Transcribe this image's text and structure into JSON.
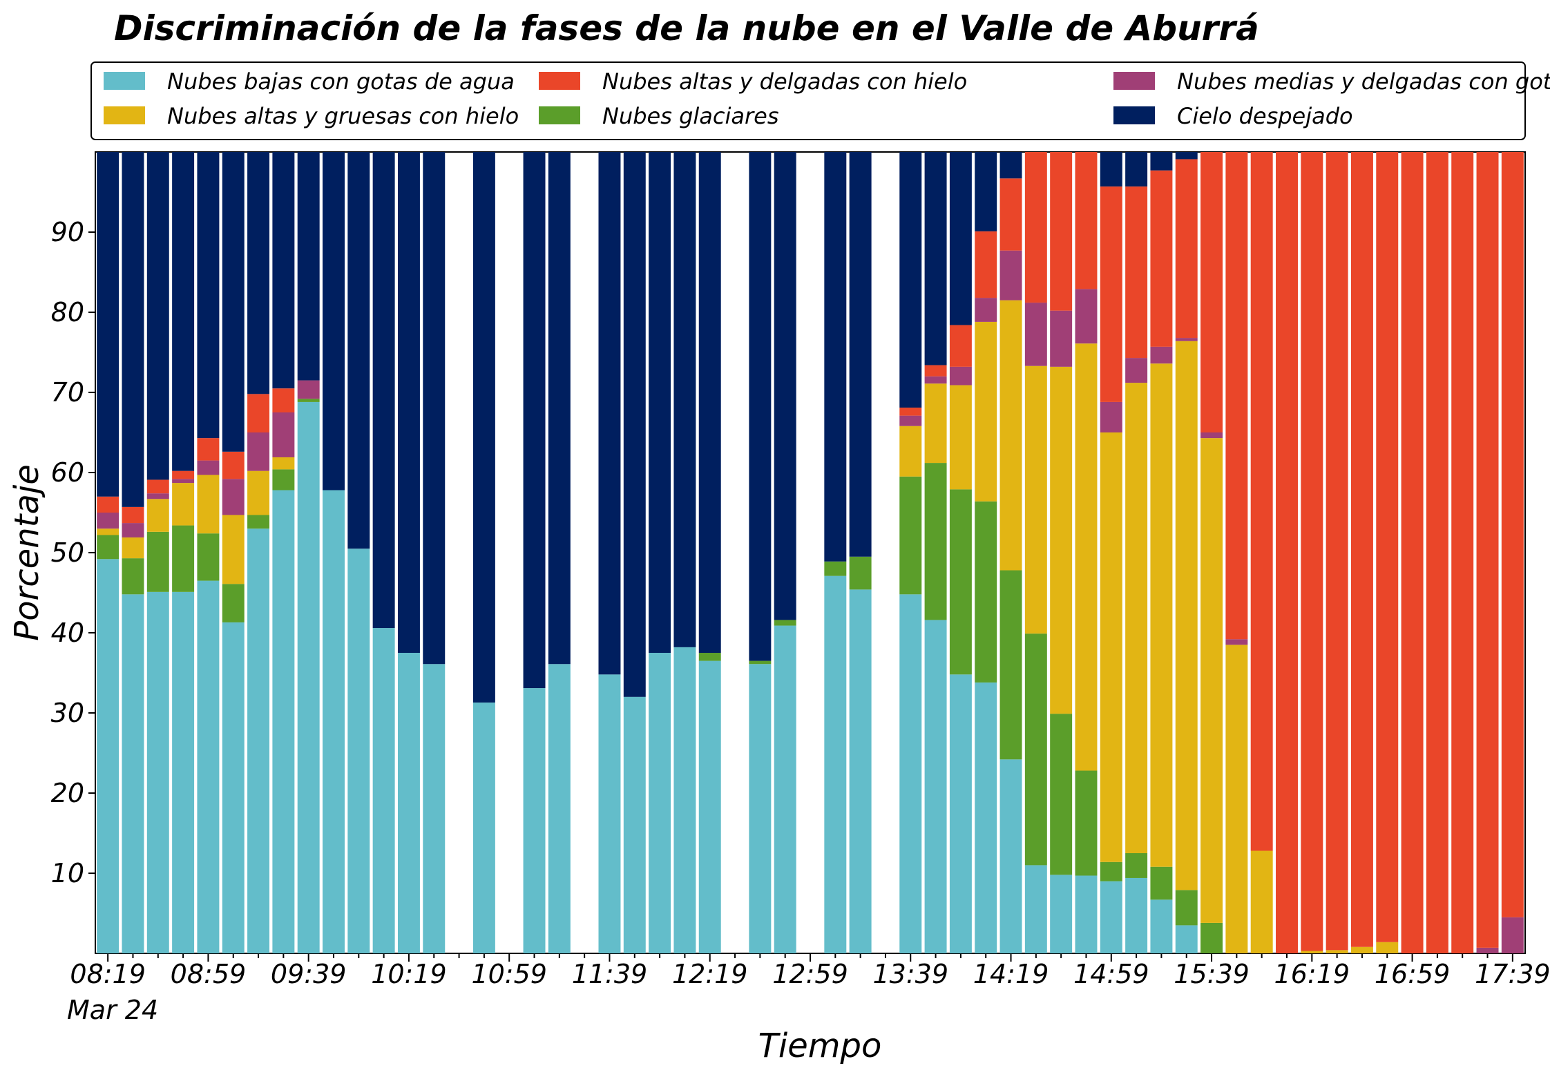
{
  "chart_data": {
    "type": "bar",
    "stacked": true,
    "title": "Discriminación de la fases de la nube en el Valle de Aburrá",
    "xlabel": "Tiempo",
    "ylabel": "Porcentaje",
    "ylim": [
      0,
      100
    ],
    "y_ticks": [
      "10",
      "20",
      "30",
      "40",
      "50",
      "60",
      "70",
      "80",
      "90"
    ],
    "x_ticks": [
      "08:19",
      "08:59",
      "09:39",
      "10:19",
      "10:59",
      "11:39",
      "12:19",
      "12:59",
      "13:39",
      "14:19",
      "14:59",
      "15:39",
      "16:19",
      "16:59",
      "17:39"
    ],
    "x_date_label": "Mar 24",
    "x_start": "08:19",
    "x_interval_minutes": 10,
    "legend_position": "top",
    "series": [
      {
        "name": "Nubes bajas con gotas de agua",
        "color": "#63bdca"
      },
      {
        "name": "Nubes glaciares",
        "color": "#5b9e2a"
      },
      {
        "name": "Nubes altas y gruesas con hielo",
        "color": "#e2b514"
      },
      {
        "name": "Nubes medias y delgadas con gotas de agua",
        "color": "#a03f76"
      },
      {
        "name": "Nubes altas y delgadas con hielo",
        "color": "#ea4629"
      },
      {
        "name": "Cielo despejado",
        "color": "#001f5f"
      }
    ],
    "legend_order": [
      0,
      2,
      4,
      1,
      3,
      5
    ],
    "bars": [
      {
        "time": "08:19",
        "values": [
          49.2,
          3,
          0.8,
          2,
          2,
          43
        ]
      },
      {
        "time": "08:29",
        "values": [
          44.8,
          4.5,
          2.6,
          1.8,
          2,
          44.3
        ]
      },
      {
        "time": "08:39",
        "values": [
          45.1,
          7.5,
          4.1,
          0.7,
          1.7,
          40.9
        ]
      },
      {
        "time": "08:49",
        "values": [
          45.1,
          8.3,
          5.3,
          0.5,
          1,
          39.8
        ]
      },
      {
        "time": "08:59",
        "values": [
          46.5,
          5.9,
          7.3,
          1.8,
          2.8,
          35.7
        ]
      },
      {
        "time": "09:09",
        "values": [
          41.3,
          4.8,
          8.6,
          4.5,
          3.4,
          37.4
        ]
      },
      {
        "time": "09:19",
        "values": [
          53,
          1.7,
          5.5,
          4.8,
          4.8,
          30.2
        ]
      },
      {
        "time": "09:29",
        "values": [
          57.8,
          2.6,
          1.5,
          5.6,
          3,
          29.5
        ]
      },
      {
        "time": "09:39",
        "values": [
          68.8,
          0.4,
          0,
          2.3,
          0,
          28.5
        ]
      },
      {
        "time": "09:49",
        "values": [
          57.8,
          0,
          0,
          0,
          0,
          42.2
        ]
      },
      {
        "time": "09:59",
        "values": [
          50.5,
          0,
          0,
          0,
          0,
          49.5
        ]
      },
      {
        "time": "10:09",
        "values": [
          40.6,
          0,
          0,
          0,
          0,
          59.4
        ]
      },
      {
        "time": "10:19",
        "values": [
          37.5,
          0,
          0,
          0,
          0,
          62.5
        ]
      },
      {
        "time": "10:29",
        "values": [
          36.1,
          0,
          0,
          0,
          0,
          63.9
        ]
      },
      {
        "time": "10:39",
        "values": null
      },
      {
        "time": "10:49",
        "values": [
          31.3,
          0,
          0,
          0,
          0,
          68.7
        ]
      },
      {
        "time": "10:59",
        "values": null
      },
      {
        "time": "11:09",
        "values": [
          33.1,
          0,
          0,
          0,
          0,
          66.9
        ]
      },
      {
        "time": "11:19",
        "values": [
          36.1,
          0,
          0,
          0,
          0,
          63.9
        ]
      },
      {
        "time": "11:29",
        "values": null
      },
      {
        "time": "11:39",
        "values": [
          34.8,
          0,
          0,
          0,
          0,
          65.2
        ]
      },
      {
        "time": "11:49",
        "values": [
          32,
          0,
          0,
          0,
          0,
          68
        ]
      },
      {
        "time": "11:59",
        "values": [
          37.5,
          0,
          0,
          0,
          0,
          62.5
        ]
      },
      {
        "time": "12:09",
        "values": [
          38.2,
          0,
          0,
          0,
          0,
          61.8
        ]
      },
      {
        "time": "12:19",
        "values": [
          36.5,
          1,
          0,
          0,
          0,
          62.5
        ]
      },
      {
        "time": "12:29",
        "values": null
      },
      {
        "time": "12:39",
        "values": [
          36.1,
          0.4,
          0,
          0,
          0,
          63.5
        ]
      },
      {
        "time": "12:49",
        "values": [
          40.9,
          0.7,
          0,
          0,
          0,
          58.4
        ]
      },
      {
        "time": "12:59",
        "values": null
      },
      {
        "time": "13:09",
        "values": [
          47.1,
          1.8,
          0,
          0,
          0,
          51.1
        ]
      },
      {
        "time": "13:19",
        "values": [
          45.4,
          4.1,
          0,
          0,
          0,
          50.5
        ]
      },
      {
        "time": "13:29",
        "values": null
      },
      {
        "time": "13:39",
        "values": [
          44.8,
          14.7,
          6.3,
          1.3,
          1,
          31.9
        ]
      },
      {
        "time": "13:49",
        "values": [
          41.6,
          19.6,
          9.9,
          0.9,
          1.4,
          26.6
        ]
      },
      {
        "time": "13:59",
        "values": [
          34.8,
          23.1,
          13,
          2.3,
          5.2,
          21.6
        ]
      },
      {
        "time": "14:09",
        "values": [
          33.8,
          22.6,
          22.4,
          3,
          8.3,
          9.9
        ]
      },
      {
        "time": "14:19",
        "values": [
          24.2,
          23.6,
          33.7,
          6.2,
          9,
          3.3
        ]
      },
      {
        "time": "14:29",
        "values": [
          11,
          28.9,
          33.4,
          7.9,
          18.8,
          0
        ]
      },
      {
        "time": "14:39",
        "values": [
          9.8,
          20.1,
          43.3,
          7,
          19.8,
          0
        ]
      },
      {
        "time": "14:49",
        "values": [
          9.7,
          13.1,
          53.3,
          6.8,
          17.1,
          0
        ]
      },
      {
        "time": "14:59",
        "values": [
          9,
          2.4,
          53.6,
          3.8,
          26.9,
          4.3
        ]
      },
      {
        "time": "15:09",
        "values": [
          9.4,
          3.1,
          58.7,
          3.1,
          21.4,
          4.3
        ]
      },
      {
        "time": "15:19",
        "values": [
          6.7,
          4.1,
          62.8,
          2.1,
          22,
          2.3
        ]
      },
      {
        "time": "15:29",
        "values": [
          3.5,
          4.4,
          68.5,
          0.4,
          22.3,
          0.9
        ]
      },
      {
        "time": "15:39",
        "values": [
          0,
          3.8,
          60.5,
          0.7,
          35,
          0
        ]
      },
      {
        "time": "15:49",
        "values": [
          0,
          0,
          38.5,
          0.7,
          60.8,
          0
        ]
      },
      {
        "time": "15:59",
        "values": [
          0,
          0,
          12.8,
          0,
          87.2,
          0
        ]
      },
      {
        "time": "16:09",
        "values": [
          0,
          0,
          0,
          0,
          100,
          0
        ]
      },
      {
        "time": "16:19",
        "values": [
          0,
          0,
          0.3,
          0,
          99.7,
          0
        ]
      },
      {
        "time": "16:29",
        "values": [
          0,
          0,
          0.4,
          0,
          99.6,
          0
        ]
      },
      {
        "time": "16:39",
        "values": [
          0,
          0,
          0.8,
          0,
          99.2,
          0
        ]
      },
      {
        "time": "16:49",
        "values": [
          0,
          0,
          1.4,
          0,
          98.6,
          0
        ]
      },
      {
        "time": "16:59",
        "values": [
          0,
          0,
          0,
          0,
          100,
          0
        ]
      },
      {
        "time": "17:09",
        "values": [
          0,
          0,
          0,
          0,
          100,
          0
        ]
      },
      {
        "time": "17:19",
        "values": [
          0,
          0,
          0,
          0,
          100,
          0
        ]
      },
      {
        "time": "17:29",
        "values": [
          0,
          0,
          0,
          0.7,
          99.3,
          0
        ]
      },
      {
        "time": "17:39",
        "values": [
          0,
          0,
          0,
          4.5,
          95.5,
          0
        ]
      }
    ]
  }
}
